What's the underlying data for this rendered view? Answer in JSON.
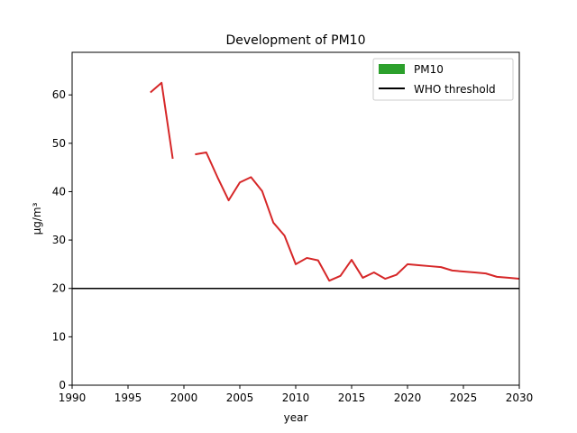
{
  "chart_data": {
    "type": "line",
    "title": "Development of PM10",
    "xlabel": "year",
    "ylabel": "μg/m³",
    "xlim": [
      1990,
      2030
    ],
    "ylim": [
      0,
      68.8
    ],
    "xticks": [
      "1990",
      "1995",
      "2000",
      "2005",
      "2010",
      "2015",
      "2020",
      "2025",
      "2030"
    ],
    "yticks": [
      "0",
      "10",
      "20",
      "30",
      "40",
      "50",
      "60"
    ],
    "grid": false,
    "legend_position": "top-right",
    "threshold": {
      "name": "WHO threshold",
      "value": 20,
      "color": "#000000"
    },
    "series": [
      {
        "name": "PM10",
        "legend_color": "#2ca02c",
        "line_color": "#d62728",
        "segments": [
          {
            "x": [
              1997,
              1998,
              1999
            ],
            "y": [
              60.5,
              62.5,
              46.8
            ]
          },
          {
            "x": [
              2001,
              2002,
              2003,
              2004,
              2005,
              2006,
              2007,
              2008,
              2009,
              2010,
              2011,
              2012,
              2013,
              2014,
              2015,
              2016,
              2017,
              2018,
              2019,
              2020,
              2021,
              2022,
              2023,
              2024,
              2025,
              2026,
              2027,
              2028,
              2029,
              2030
            ],
            "y": [
              47.7,
              48.1,
              43.0,
              38.2,
              41.9,
              43.0,
              40.1,
              33.6,
              30.9,
              25.0,
              26.3,
              25.8,
              21.6,
              22.6,
              25.9,
              22.2,
              23.3,
              22.0,
              22.8,
              25.0,
              24.8,
              24.6,
              24.4,
              23.7,
              23.5,
              23.3,
              23.1,
              22.4,
              22.2,
              22.0
            ]
          }
        ]
      }
    ]
  }
}
